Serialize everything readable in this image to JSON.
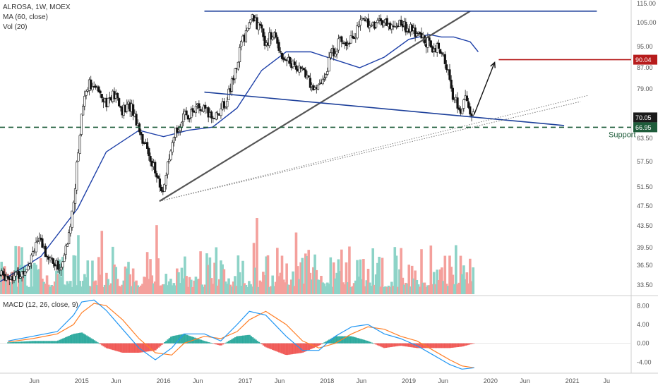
{
  "header": {
    "title": "ALROSA, 1W, MOEX",
    "ma_label": "MA (60, close)",
    "vol_label": "Vol (20)",
    "macd_label": "MACD (12, 26, close, 9)"
  },
  "annotations": {
    "support_label": "Support"
  },
  "colors": {
    "up": "#26a69a",
    "down": "#ef5350",
    "vol_up": "#8dd3c7",
    "vol_down": "#f4a09c",
    "ma": "#1e40a8",
    "trend_blue": "#1c3f9a",
    "trend_dark": "#555555",
    "support": "#1e5c3a",
    "target": "#b71c1c",
    "macd_line": "#2196f3",
    "signal_line": "#ff7f27",
    "current_price_bg": "#1a1a1a"
  },
  "chart_data": [
    {
      "type": "candlestick",
      "title": "ALROSA, 1W, MOEX",
      "x_tick_labels": [
        "Jun",
        "2015",
        "Jun",
        "2016",
        "Jun",
        "2017",
        "Jun",
        "2018",
        "Jun",
        "2019",
        "Jun",
        "2020",
        "Jun",
        "2021",
        "Ju"
      ],
      "y_tick_labels": [
        "115.00",
        "105.00",
        "95.00",
        "87.00",
        "79.00",
        "70.05",
        "66.95",
        "63.50",
        "57.50",
        "51.50",
        "47.50",
        "43.50",
        "39.50",
        "36.50",
        "33.50"
      ],
      "ylim": [
        32,
        116
      ],
      "price_path": [
        [
          2014.25,
          35
        ],
        [
          2014.35,
          37
        ],
        [
          2014.45,
          41
        ],
        [
          2014.55,
          39
        ],
        [
          2014.65,
          37
        ],
        [
          2014.75,
          36
        ],
        [
          2014.85,
          42
        ],
        [
          2014.92,
          52
        ],
        [
          2014.97,
          63
        ],
        [
          2015.0,
          72
        ],
        [
          2015.05,
          79
        ],
        [
          2015.1,
          82
        ],
        [
          2015.15,
          78
        ],
        [
          2015.2,
          80
        ],
        [
          2015.3,
          75
        ],
        [
          2015.4,
          77
        ],
        [
          2015.5,
          72
        ],
        [
          2015.6,
          74
        ],
        [
          2015.7,
          67
        ],
        [
          2015.75,
          63
        ],
        [
          2015.85,
          58
        ],
        [
          2015.93,
          53
        ],
        [
          2015.98,
          50
        ],
        [
          2016.05,
          56
        ],
        [
          2016.1,
          60
        ],
        [
          2016.15,
          66
        ],
        [
          2016.25,
          70
        ],
        [
          2016.4,
          73
        ],
        [
          2016.5,
          72
        ],
        [
          2016.6,
          70
        ],
        [
          2016.75,
          74
        ],
        [
          2016.85,
          82
        ],
        [
          2016.95,
          96
        ],
        [
          2017.05,
          105
        ],
        [
          2017.1,
          108
        ],
        [
          2017.15,
          104
        ],
        [
          2017.25,
          97
        ],
        [
          2017.35,
          100
        ],
        [
          2017.45,
          92
        ],
        [
          2017.55,
          89
        ],
        [
          2017.65,
          87
        ],
        [
          2017.75,
          84
        ],
        [
          2017.85,
          78
        ],
        [
          2017.95,
          82
        ],
        [
          2018.05,
          92
        ],
        [
          2018.15,
          97
        ],
        [
          2018.25,
          98
        ],
        [
          2018.35,
          100
        ],
        [
          2018.45,
          108
        ],
        [
          2018.55,
          103
        ],
        [
          2018.65,
          107
        ],
        [
          2018.75,
          103
        ],
        [
          2018.85,
          105
        ],
        [
          2018.95,
          104
        ],
        [
          2019.05,
          101
        ],
        [
          2019.15,
          99
        ],
        [
          2019.25,
          96
        ],
        [
          2019.35,
          94
        ],
        [
          2019.45,
          89
        ],
        [
          2019.5,
          83
        ],
        [
          2019.55,
          75
        ],
        [
          2019.6,
          74
        ],
        [
          2019.65,
          72
        ],
        [
          2019.7,
          77
        ],
        [
          2019.75,
          71
        ],
        [
          2019.8,
          70.05
        ]
      ],
      "last_price": 70.05,
      "series": [
        {
          "name": "MA (60, close)",
          "x": [
            2014.0,
            2014.5,
            2014.95,
            2015.3,
            2015.7,
            2016.0,
            2016.3,
            2016.6,
            2016.9,
            2017.2,
            2017.5,
            2017.8,
            2018.1,
            2018.4,
            2018.7,
            2019.0,
            2019.25,
            2019.4,
            2019.55,
            2019.75,
            2019.85
          ],
          "y": [
            34,
            38,
            47,
            60,
            66,
            64,
            66,
            67,
            73,
            86,
            93,
            93,
            90,
            87,
            91,
            98,
            100,
            99,
            99,
            97,
            93
          ]
        }
      ],
      "trendlines": [
        {
          "x": [
            2015.95,
            2019.75
          ],
          "y": [
            48.5,
            111
          ]
        },
        {
          "x": [
            2016.5,
            2020.9
          ],
          "y": [
            78,
            67.5
          ]
        },
        {
          "x": [
            2016.5,
            2021.3
          ],
          "y": [
            111,
            111
          ]
        },
        {
          "x": [
            2015.95,
            2021.1
          ],
          "y": [
            48.5,
            75
          ]
        },
        {
          "x": [
            2015.95,
            2021.2
          ],
          "y": [
            48.5,
            77
          ]
        }
      ],
      "support_level": 66.95,
      "target_level": 90.04,
      "projection": {
        "x": [
          2019.8,
          2020.05
        ],
        "y": [
          71,
          89
        ]
      }
    },
    {
      "type": "bar",
      "title": "Vol (20)",
      "x_range": [
        2014.15,
        2019.85
      ]
    },
    {
      "type": "line",
      "title": "MACD (12, 26, close, 9)",
      "y_tick_labels": [
        "8.00",
        "4.00",
        "0.00",
        "-4.00"
      ],
      "ylim": [
        -6.2,
        10
      ],
      "series": [
        {
          "name": "MACD",
          "x": [
            2014.1,
            2014.4,
            2014.7,
            2014.9,
            2015.0,
            2015.15,
            2015.3,
            2015.5,
            2015.7,
            2015.9,
            2016.1,
            2016.25,
            2016.5,
            2016.7,
            2016.9,
            2017.05,
            2017.25,
            2017.5,
            2017.7,
            2017.9,
            2018.1,
            2018.3,
            2018.5,
            2018.7,
            2018.9,
            2019.1,
            2019.3,
            2019.5,
            2019.65,
            2019.8
          ],
          "y": [
            0.5,
            1.5,
            2.5,
            6,
            8.8,
            9.2,
            7,
            3,
            -1,
            -3.5,
            -1,
            2,
            2,
            0.5,
            4,
            6.8,
            6,
            1.5,
            -1.5,
            -1.5,
            1.5,
            3.5,
            4,
            2,
            1,
            -0.5,
            -2.5,
            -4.5,
            -5.5,
            -5.2
          ]
        },
        {
          "name": "Signal",
          "x": [
            2014.1,
            2014.4,
            2014.7,
            2014.9,
            2015.0,
            2015.15,
            2015.3,
            2015.5,
            2015.7,
            2015.9,
            2016.1,
            2016.25,
            2016.5,
            2016.7,
            2016.9,
            2017.05,
            2017.25,
            2017.5,
            2017.7,
            2017.9,
            2018.1,
            2018.3,
            2018.5,
            2018.7,
            2018.9,
            2019.1,
            2019.3,
            2019.5,
            2019.65,
            2019.8
          ],
          "y": [
            0.3,
            1.0,
            2.0,
            4,
            6.5,
            8.5,
            8,
            5,
            1,
            -2,
            -2.5,
            0,
            1.5,
            1,
            2.5,
            5,
            6.8,
            4,
            0.5,
            -1,
            0,
            2,
            3.5,
            3,
            1.5,
            0.5,
            -1.5,
            -3.5,
            -4.8,
            -5.2
          ]
        }
      ]
    }
  ]
}
